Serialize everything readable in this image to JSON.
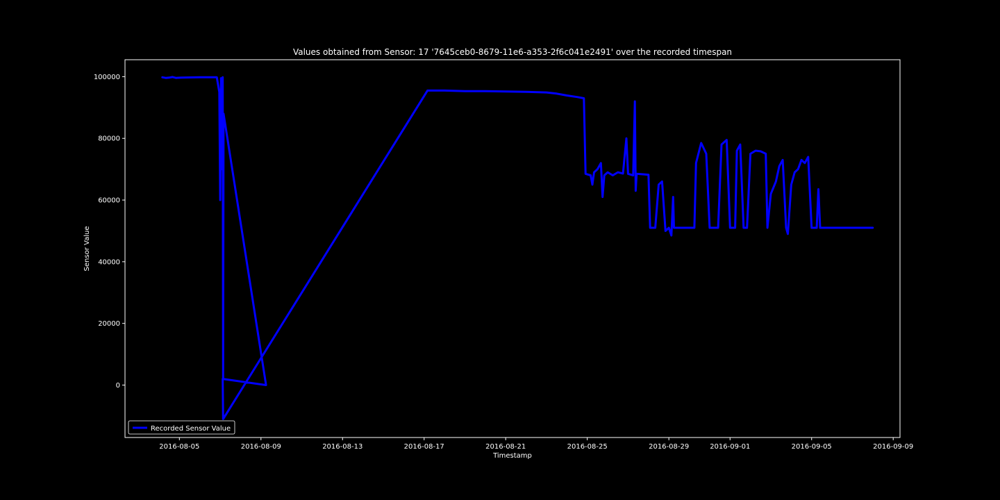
{
  "colors": {
    "background": "#000000",
    "axes": "#ffffff",
    "line": "#0000ff",
    "text": "#ffffff"
  },
  "chart_data": {
    "type": "line",
    "title": "Values obtained from Sensor: 17 '7645ceb0-8679-11e6-a353-2f6c041e2491' over the recorded timespan",
    "xlabel": "Timestamp",
    "ylabel": "Sensor Value",
    "xlim": [
      "2016-08-02T08:00",
      "2016-09-09T08:00"
    ],
    "ylim": [
      -17000,
      105500
    ],
    "x_ticks": [
      "2016-08-05",
      "2016-08-09",
      "2016-08-13",
      "2016-08-17",
      "2016-08-21",
      "2016-08-25",
      "2016-08-29",
      "2016-09-01",
      "2016-09-05",
      "2016-09-09"
    ],
    "y_ticks": [
      0,
      20000,
      40000,
      60000,
      80000,
      100000
    ],
    "grid": false,
    "legend_position": "lower-left",
    "series": [
      {
        "name": "Recorded Sensor Value",
        "points": [
          [
            "2016-08-04T04:00",
            99800
          ],
          [
            "2016-08-04T08:00",
            99600
          ],
          [
            "2016-08-04T12:00",
            99700
          ],
          [
            "2016-08-04T16:00",
            99900
          ],
          [
            "2016-08-04T20:00",
            99600
          ],
          [
            "2016-08-05T02:00",
            99700
          ],
          [
            "2016-08-06T00:00",
            99800
          ],
          [
            "2016-08-06T20:00",
            99800
          ],
          [
            "2016-08-06T23:00",
            95000
          ],
          [
            "2016-08-07T00:00",
            60000
          ],
          [
            "2016-08-07T01:00",
            99500
          ],
          [
            "2016-08-07T02:00",
            70000
          ],
          [
            "2016-08-07T03:00",
            99800
          ],
          [
            "2016-08-07T03:30",
            2000
          ],
          [
            "2016-08-07T04:00",
            88000
          ],
          [
            "2016-08-09T06:00",
            0
          ],
          [
            "2016-08-07T03:00",
            2000
          ],
          [
            "2016-08-07T03:30",
            -11000
          ],
          [
            "2016-08-17T04:00",
            95500
          ],
          [
            "2016-08-18T00:00",
            95500
          ],
          [
            "2016-08-19T00:00",
            95300
          ],
          [
            "2016-08-20T00:00",
            95300
          ],
          [
            "2016-08-21T00:00",
            95200
          ],
          [
            "2016-08-22T00:00",
            95100
          ],
          [
            "2016-08-23T00:00",
            94900
          ],
          [
            "2016-08-23T12:00",
            94500
          ],
          [
            "2016-08-24T00:00",
            93900
          ],
          [
            "2016-08-24T12:00",
            93400
          ],
          [
            "2016-08-24T20:00",
            93000
          ],
          [
            "2016-08-24T22:00",
            68500
          ],
          [
            "2016-08-25T04:00",
            68000
          ],
          [
            "2016-08-25T06:00",
            65000
          ],
          [
            "2016-08-25T08:00",
            69000
          ],
          [
            "2016-08-25T12:00",
            70000
          ],
          [
            "2016-08-25T16:00",
            72000
          ],
          [
            "2016-08-25T18:00",
            61000
          ],
          [
            "2016-08-25T20:00",
            68000
          ],
          [
            "2016-08-26T00:00",
            69000
          ],
          [
            "2016-08-26T06:00",
            68000
          ],
          [
            "2016-08-26T12:00",
            69000
          ],
          [
            "2016-08-26T18:00",
            68600
          ],
          [
            "2016-08-26T22:00",
            80000
          ],
          [
            "2016-08-27T00:00",
            68500
          ],
          [
            "2016-08-27T06:00",
            68000
          ],
          [
            "2016-08-27T08:00",
            92000
          ],
          [
            "2016-08-27T09:00",
            63000
          ],
          [
            "2016-08-27T10:00",
            68500
          ],
          [
            "2016-08-28T00:00",
            68200
          ],
          [
            "2016-08-28T02:00",
            51000
          ],
          [
            "2016-08-28T08:00",
            51000
          ],
          [
            "2016-08-28T12:00",
            65000
          ],
          [
            "2016-08-28T16:00",
            66000
          ],
          [
            "2016-08-28T20:00",
            50000
          ],
          [
            "2016-08-29T00:00",
            51000
          ],
          [
            "2016-08-29T03:00",
            48500
          ],
          [
            "2016-08-29T05:00",
            61000
          ],
          [
            "2016-08-29T06:00",
            51000
          ],
          [
            "2016-08-30T00:00",
            51000
          ],
          [
            "2016-08-30T06:00",
            51000
          ],
          [
            "2016-08-30T08:00",
            72000
          ],
          [
            "2016-08-30T14:00",
            78500
          ],
          [
            "2016-08-30T20:00",
            75000
          ],
          [
            "2016-08-31T00:00",
            51000
          ],
          [
            "2016-08-31T10:00",
            51000
          ],
          [
            "2016-08-31T14:00",
            78000
          ],
          [
            "2016-08-31T20:00",
            79500
          ],
          [
            "2016-09-01T00:00",
            51000
          ],
          [
            "2016-09-01T06:00",
            51000
          ],
          [
            "2016-09-01T08:00",
            76000
          ],
          [
            "2016-09-01T12:00",
            78000
          ],
          [
            "2016-09-01T16:00",
            51000
          ],
          [
            "2016-09-01T20:00",
            51000
          ],
          [
            "2016-09-02T00:00",
            75000
          ],
          [
            "2016-09-02T06:00",
            76000
          ],
          [
            "2016-09-02T12:00",
            75800
          ],
          [
            "2016-09-02T18:00",
            75000
          ],
          [
            "2016-09-02T20:00",
            51000
          ],
          [
            "2016-09-03T00:00",
            62000
          ],
          [
            "2016-09-03T06:00",
            66000
          ],
          [
            "2016-09-03T10:00",
            71000
          ],
          [
            "2016-09-03T14:00",
            73000
          ],
          [
            "2016-09-03T18:00",
            51000
          ],
          [
            "2016-09-03T20:00",
            49000
          ],
          [
            "2016-09-04T00:00",
            65000
          ],
          [
            "2016-09-04T04:00",
            69000
          ],
          [
            "2016-09-04T08:00",
            70000
          ],
          [
            "2016-09-04T12:00",
            73000
          ],
          [
            "2016-09-04T16:00",
            72000
          ],
          [
            "2016-09-04T20:00",
            74000
          ],
          [
            "2016-09-05T00:00",
            51000
          ],
          [
            "2016-09-05T06:00",
            51000
          ],
          [
            "2016-09-05T08:00",
            63500
          ],
          [
            "2016-09-05T10:00",
            51000
          ],
          [
            "2016-09-06T00:00",
            51000
          ],
          [
            "2016-09-08T00:00",
            51000
          ]
        ]
      }
    ]
  }
}
